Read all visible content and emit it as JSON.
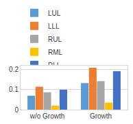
{
  "chart_data": {
    "type": "bar",
    "categories": [
      "w/o Growth",
      "Growth"
    ],
    "series": [
      {
        "name": "LUL",
        "color": "#5B9BD5",
        "values": [
          0.07,
          0.133
        ]
      },
      {
        "name": "LLL",
        "color": "#ED7D31",
        "values": [
          0.115,
          0.21
        ]
      },
      {
        "name": "RUL",
        "color": "#A5A5A5",
        "values": [
          0.087,
          0.143
        ]
      },
      {
        "name": "RML",
        "color": "#FFC000",
        "values": [
          0.02,
          0.035
        ]
      },
      {
        "name": "RLL",
        "color": "#4472C4",
        "values": [
          0.1,
          0.193
        ]
      }
    ],
    "ylim": [
      0,
      0.22
    ],
    "yticks": [
      0,
      0.1,
      0.2
    ],
    "grid": true,
    "legend": "top"
  }
}
